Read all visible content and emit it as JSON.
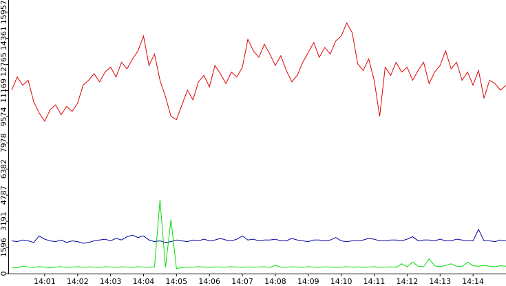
{
  "chart_data": {
    "type": "line",
    "categories": [
      null,
      null,
      null,
      null,
      null,
      null,
      "14:01",
      null,
      null,
      null,
      null,
      null,
      "14:02",
      null,
      null,
      null,
      null,
      null,
      "14:03",
      null,
      null,
      null,
      null,
      null,
      "14:04",
      null,
      null,
      null,
      null,
      null,
      "14:05",
      null,
      null,
      null,
      null,
      null,
      "14:06",
      null,
      null,
      null,
      null,
      null,
      "14:07",
      null,
      null,
      null,
      null,
      null,
      "14:08",
      null,
      null,
      null,
      null,
      null,
      "14:09",
      null,
      null,
      null,
      null,
      null,
      "14:10",
      null,
      null,
      null,
      null,
      null,
      "14:11",
      null,
      null,
      null,
      null,
      null,
      "14:12",
      null,
      null,
      null,
      null,
      null,
      "14:13",
      null,
      null,
      null,
      null,
      null,
      "14:14",
      null,
      null,
      null,
      null,
      null,
      null
    ],
    "series": [
      {
        "color": "#e00000",
        "values": [
          11200,
          12000,
          11500,
          11800,
          10500,
          9800,
          9300,
          10000,
          10300,
          9700,
          10200,
          9900,
          10400,
          11500,
          11800,
          12200,
          11700,
          12300,
          12600,
          12000,
          12900,
          12500,
          13100,
          13600,
          14500,
          12700,
          13400,
          11800,
          10800,
          9600,
          9400,
          10300,
          11200,
          10600,
          11700,
          12100,
          11400,
          12700,
          12200,
          11600,
          12300,
          12000,
          12600,
          14300,
          13600,
          13200,
          14000,
          13400,
          12700,
          13300,
          12400,
          11700,
          12100,
          12900,
          13500,
          14100,
          13200,
          13800,
          13400,
          14200,
          14500,
          15300,
          14700,
          12800,
          12400,
          13100,
          11800,
          9600,
          12600,
          12100,
          12900,
          12300,
          12600,
          11800,
          12400,
          12900,
          11600,
          12300,
          12700,
          13600,
          12500,
          12900,
          11800,
          12300,
          11500,
          12400,
          10700,
          11800,
          11600,
          11200,
          11500
        ]
      },
      {
        "color": "#0000a0",
        "values": [
          2000,
          1950,
          2050,
          2000,
          1900,
          2300,
          2100,
          2000,
          1950,
          2050,
          1900,
          2000,
          1950,
          1850,
          1900,
          2000,
          2050,
          2100,
          2000,
          2150,
          2050,
          2250,
          2350,
          2200,
          2300,
          2050,
          1950,
          2000,
          1900,
          1950,
          2050,
          2000,
          1950,
          2050,
          2000,
          2100,
          2000,
          2050,
          2150,
          2050,
          2000,
          2100,
          2300,
          2050,
          2100,
          2000,
          2050,
          2050,
          2100,
          2000,
          2000,
          2150,
          2050,
          2000,
          1950,
          2050,
          2050,
          2000,
          2050,
          2200,
          2000,
          1950,
          2000,
          2000,
          2050,
          2150,
          2100,
          2000,
          2000,
          2050,
          2050,
          2000,
          2100,
          2250,
          2000,
          2050,
          2050,
          2000,
          2100,
          2000,
          2000,
          2100,
          2050,
          2000,
          2000,
          2700,
          2000,
          2000,
          1950,
          2050,
          2000
        ]
      },
      {
        "color": "#00dd00",
        "values": [
          400,
          350,
          450,
          400,
          380,
          420,
          400,
          360,
          400,
          420,
          380,
          400,
          420,
          390,
          410,
          400,
          380,
          420,
          400,
          390,
          410,
          400,
          380,
          420,
          400,
          390,
          410,
          4500,
          380,
          3300,
          300,
          380,
          400,
          390,
          420,
          400,
          380,
          410,
          400,
          390,
          420,
          400,
          380,
          410,
          390,
          400,
          420,
          380,
          500,
          400,
          390,
          410,
          400,
          380,
          420,
          400,
          390,
          410,
          400,
          380,
          400,
          420,
          390,
          410,
          380,
          400,
          420,
          390,
          400,
          410,
          380,
          600,
          420,
          700,
          450,
          420,
          900,
          480,
          420,
          500,
          600,
          450,
          420,
          700,
          480,
          450,
          500,
          450,
          420,
          480,
          450
        ]
      }
    ],
    "ylim": [
      0,
      16700
    ],
    "yticks": [
      0,
      1596,
      3191,
      4787,
      6382,
      7978,
      9574,
      11169,
      12765,
      14361,
      15957
    ]
  }
}
